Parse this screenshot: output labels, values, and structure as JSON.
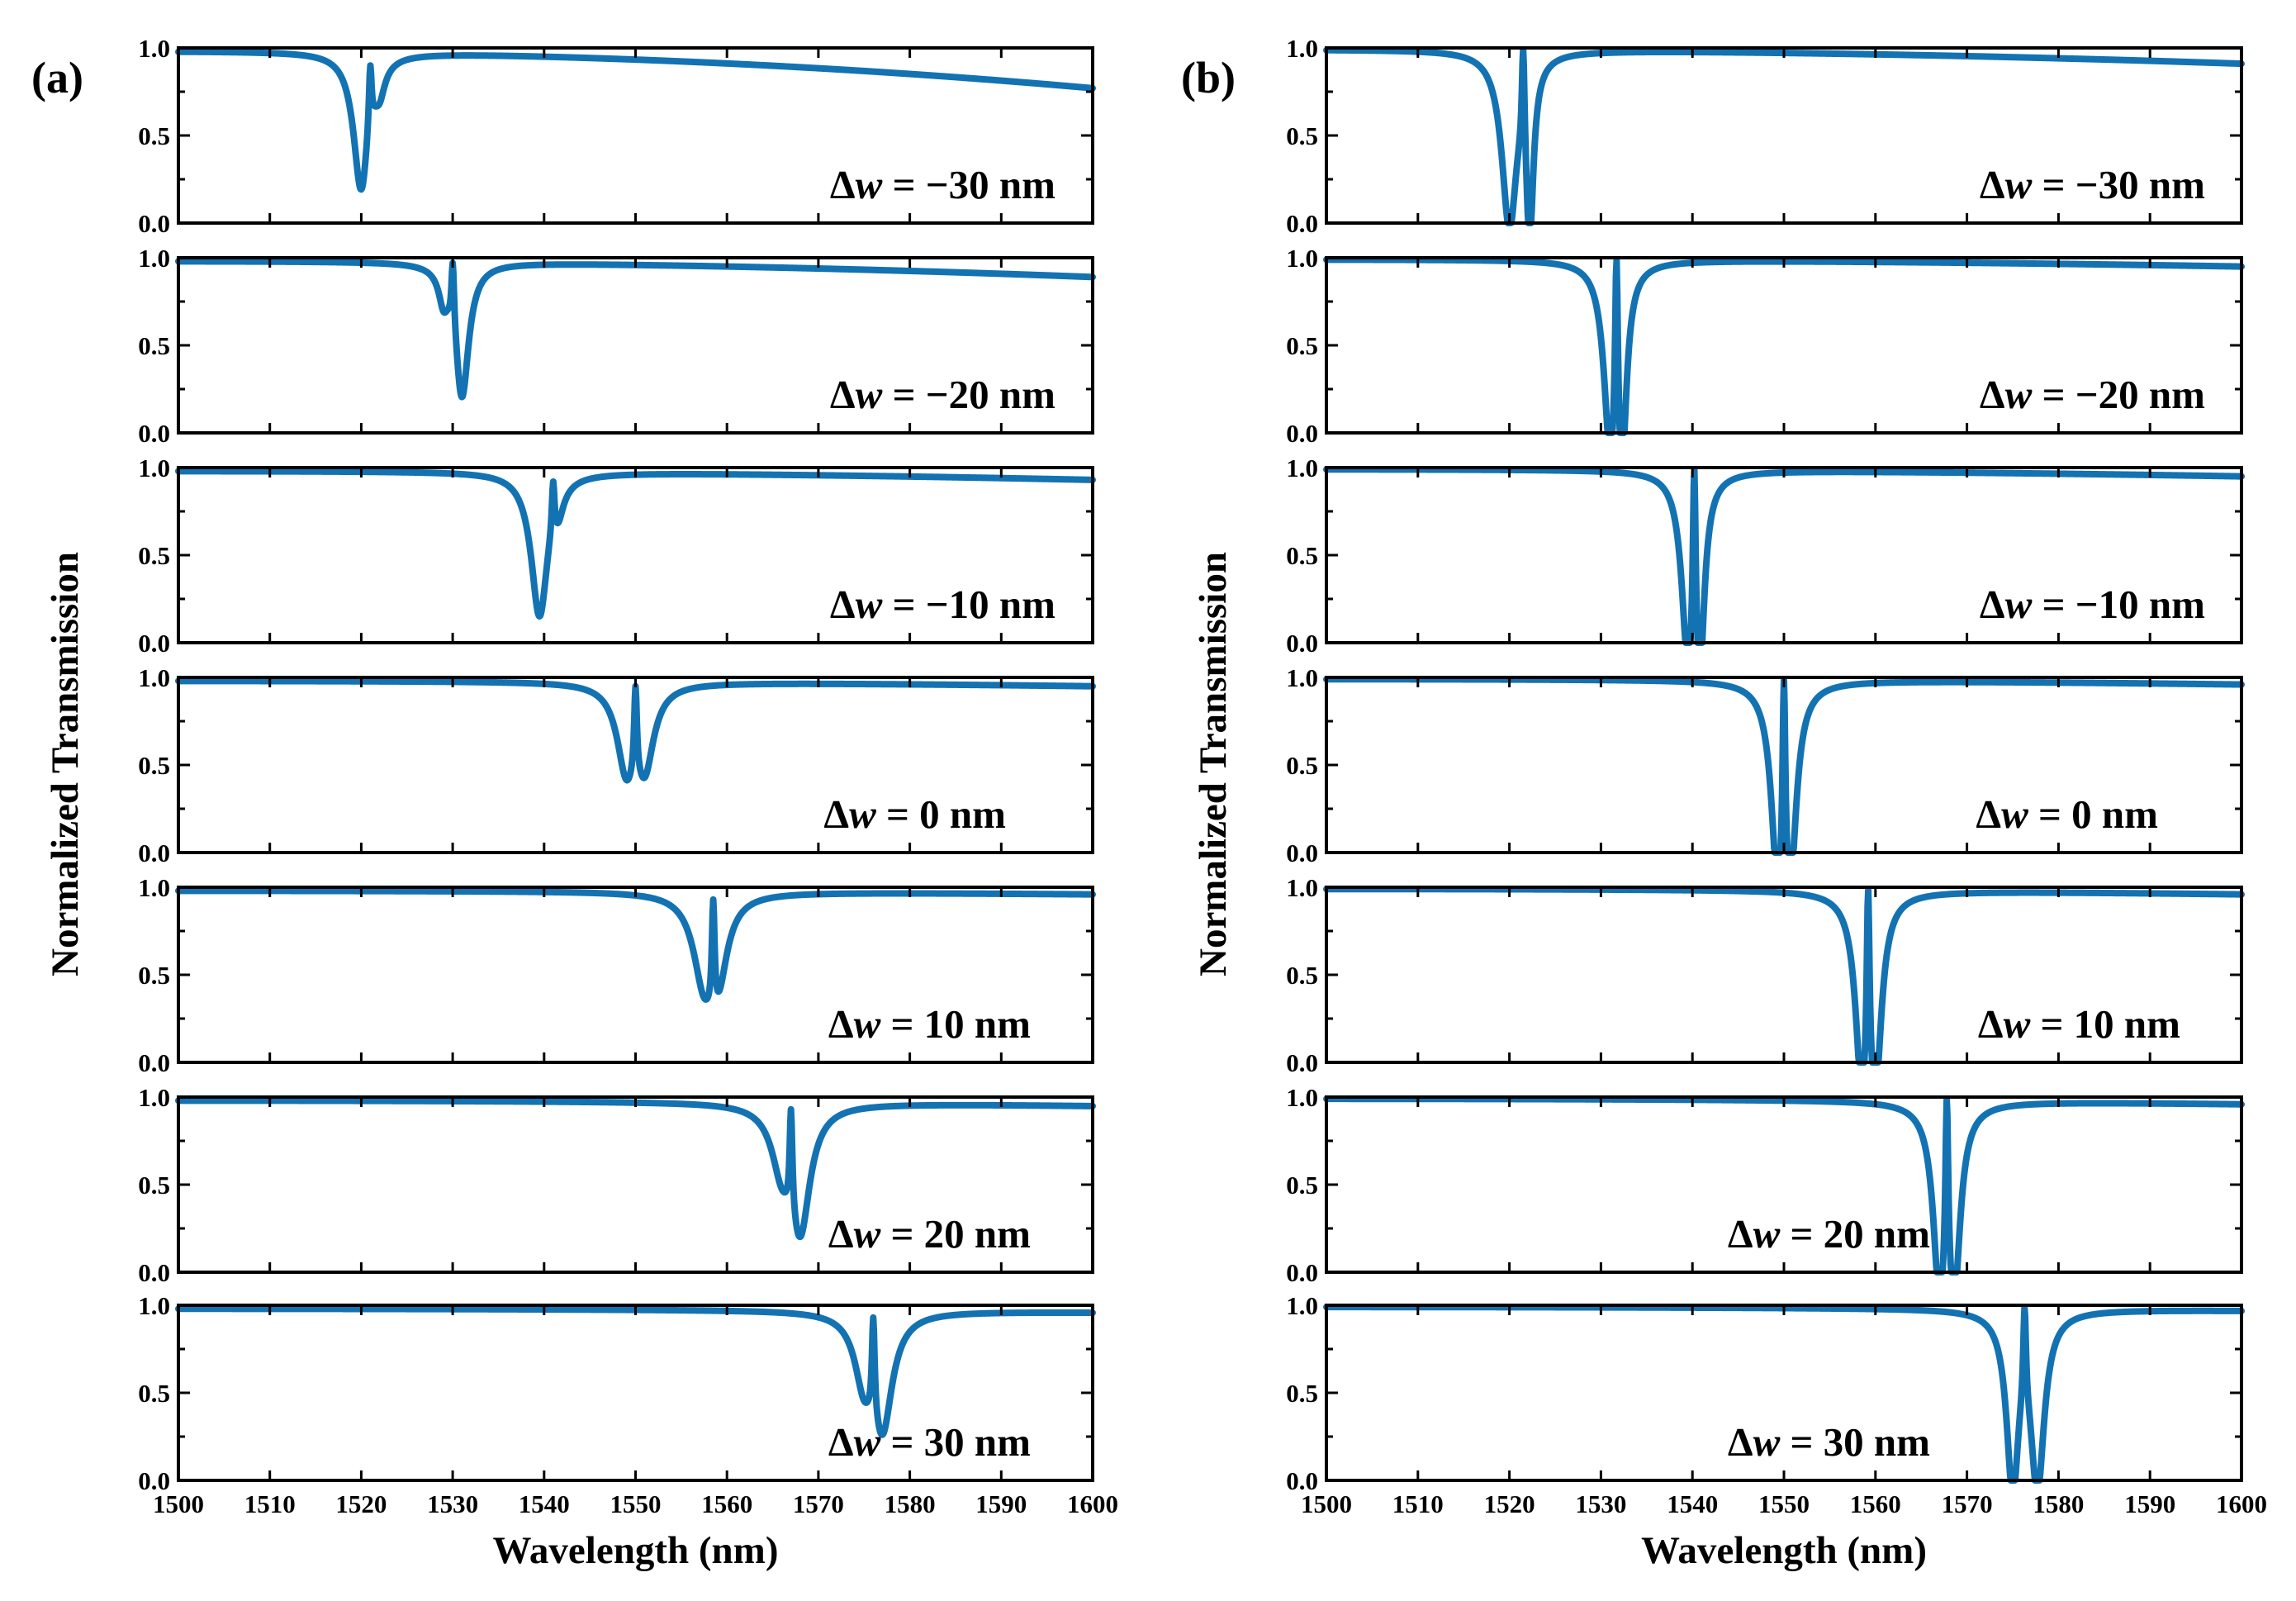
{
  "colors": {
    "line": "#1372b2",
    "axis": "#000000",
    "background": "#ffffff"
  },
  "chart_data": [
    {
      "panel": "(a)",
      "type": "line",
      "xlabel": "Wavelength (nm)",
      "ylabel": "Normalized Transmission",
      "xlim": [
        1500,
        1600
      ],
      "ylim": [
        0,
        1
      ],
      "xticks": [
        "1500",
        "1510",
        "1520",
        "1530",
        "1540",
        "1550",
        "1560",
        "1570",
        "1580",
        "1590",
        "1600"
      ],
      "yticks": [
        "0.0",
        "0.5",
        "1.0"
      ],
      "baseline_left": 0.98,
      "subplots": [
        {
          "label": "Δw = −30 nm",
          "label_prefix": "Δ",
          "label_var": "w",
          "label_rest": " = −30 nm",
          "dips": [
            {
              "center": 1520,
              "depth": 0.79,
              "width": 1.0
            },
            {
              "center": 1522,
              "depth": 0.14,
              "width": 0.7
            }
          ],
          "peak": {
            "at": 1521,
            "value": 0.9
          },
          "baseline_right": 0.77
        },
        {
          "label": "Δw = −20 nm",
          "label_prefix": "Δ",
          "label_var": "w",
          "label_rest": " = −20 nm",
          "dips": [
            {
              "center": 1529,
              "depth": 0.16,
              "width": 0.6
            },
            {
              "center": 1531,
              "depth": 0.78,
              "width": 0.9
            }
          ],
          "peak": {
            "at": 1530,
            "value": 0.97
          },
          "baseline_right": 0.89
        },
        {
          "label": "Δw = −10 nm",
          "label_prefix": "Δ",
          "label_var": "w",
          "label_rest": " = −10 nm",
          "dips": [
            {
              "center": 1539.5,
              "depth": 0.82,
              "width": 1.1
            },
            {
              "center": 1541.5,
              "depth": 0.13,
              "width": 0.7
            }
          ],
          "peak": {
            "at": 1541,
            "value": 0.92
          },
          "baseline_right": 0.93
        },
        {
          "label": "Δw = 0 nm",
          "label_prefix": "Δ",
          "label_var": "w",
          "label_rest": " = 0 nm",
          "dips": [
            {
              "center": 1549,
              "depth": 0.46,
              "width": 1.2
            },
            {
              "center": 1551,
              "depth": 0.44,
              "width": 1.2
            }
          ],
          "peak": {
            "at": 1550,
            "value": 0.95
          },
          "baseline_right": 0.95
        },
        {
          "label": "Δw = 10 nm",
          "label_prefix": "Δ",
          "label_var": "w",
          "label_rest": " = 10 nm",
          "dips": [
            {
              "center": 1557.5,
              "depth": 0.46,
              "width": 1.4
            },
            {
              "center": 1559,
              "depth": 0.42,
              "width": 1.2
            }
          ],
          "peak": {
            "at": 1558.5,
            "value": 0.93
          },
          "baseline_right": 0.96
        },
        {
          "label": "Δw = 20 nm",
          "label_prefix": "Δ",
          "label_var": "w",
          "label_rest": " = 20 nm",
          "dips": [
            {
              "center": 1566,
              "depth": 0.3,
              "width": 1.3
            },
            {
              "center": 1568,
              "depth": 0.7,
              "width": 1.3
            }
          ],
          "peak": {
            "at": 1567,
            "value": 0.93
          },
          "baseline_right": 0.95
        },
        {
          "label": "Δw = 30 nm",
          "label_prefix": "Δ",
          "label_var": "w",
          "label_rest": " = 30 nm",
          "dips": [
            {
              "center": 1575,
              "depth": 0.34,
              "width": 1.2
            },
            {
              "center": 1577,
              "depth": 0.64,
              "width": 1.3
            }
          ],
          "peak": {
            "at": 1576,
            "value": 0.93
          },
          "baseline_right": 0.96
        }
      ]
    },
    {
      "panel": "(b)",
      "type": "line",
      "xlabel": "Wavelength (nm)",
      "ylabel": "Normalized Transmission",
      "xlim": [
        1500,
        1600
      ],
      "ylim": [
        0,
        1
      ],
      "xticks": [
        "1500",
        "1510",
        "1520",
        "1530",
        "1540",
        "1550",
        "1560",
        "1570",
        "1580",
        "1590",
        "1600"
      ],
      "yticks": [
        "0.0",
        "0.5",
        "1.0"
      ],
      "baseline_left": 0.99,
      "subplots": [
        {
          "label": "Δw = −30 nm",
          "label_prefix": "Δ",
          "label_var": "w",
          "label_rest": " = −30 nm",
          "dips": [
            {
              "center": 1520,
              "depth": 0.99,
              "width": 1.0
            },
            {
              "center": 1522.2,
              "depth": 0.99,
              "width": 0.5
            }
          ],
          "peak": {
            "at": 1521.5,
            "value": 0.99
          },
          "baseline_right": 0.91
        },
        {
          "label": "Δw = −20 nm",
          "label_prefix": "Δ",
          "label_var": "w",
          "label_rest": " = −20 nm",
          "dips": [
            {
              "center": 1531,
              "depth": 0.99,
              "width": 0.8
            },
            {
              "center": 1532.3,
              "depth": 0.99,
              "width": 0.6
            }
          ],
          "peak": {
            "at": 1531.7,
            "value": 0.99
          },
          "baseline_right": 0.95
        },
        {
          "label": "Δw = −10 nm",
          "label_prefix": "Δ",
          "label_var": "w",
          "label_rest": " = −10 nm",
          "dips": [
            {
              "center": 1539.5,
              "depth": 0.99,
              "width": 0.8
            },
            {
              "center": 1540.8,
              "depth": 0.99,
              "width": 0.6
            }
          ],
          "peak": {
            "at": 1540.2,
            "value": 0.99
          },
          "baseline_right": 0.95
        },
        {
          "label": "Δw = 0 nm",
          "label_prefix": "Δ",
          "label_var": "w",
          "label_rest": " = 0 nm",
          "dips": [
            {
              "center": 1549.3,
              "depth": 0.99,
              "width": 0.8
            },
            {
              "center": 1550.7,
              "depth": 0.99,
              "width": 0.8
            }
          ],
          "peak": {
            "at": 1550,
            "value": 0.99
          },
          "baseline_right": 0.96
        },
        {
          "label": "Δw = 10 nm",
          "label_prefix": "Δ",
          "label_var": "w",
          "label_rest": " = 10 nm",
          "dips": [
            {
              "center": 1558.5,
              "depth": 0.99,
              "width": 0.8
            },
            {
              "center": 1560,
              "depth": 0.99,
              "width": 0.8
            }
          ],
          "peak": {
            "at": 1559.2,
            "value": 0.99
          },
          "baseline_right": 0.96
        },
        {
          "label": "Δw = 20 nm",
          "label_prefix": "Δ",
          "label_var": "w",
          "label_rest": " = 20 nm",
          "dips": [
            {
              "center": 1567,
              "depth": 0.99,
              "width": 0.8
            },
            {
              "center": 1568.6,
              "depth": 0.99,
              "width": 0.8
            }
          ],
          "peak": {
            "at": 1567.8,
            "value": 0.99
          },
          "baseline_right": 0.96
        },
        {
          "label": "Δw = 30 nm",
          "label_prefix": "Δ",
          "label_var": "w",
          "label_rest": " = 30 nm",
          "dips": [
            {
              "center": 1575,
              "depth": 0.99,
              "width": 0.8
            },
            {
              "center": 1577.7,
              "depth": 0.99,
              "width": 0.9
            }
          ],
          "peak": {
            "at": 1576.3,
            "value": 0.99
          },
          "baseline_right": 0.97
        }
      ]
    }
  ]
}
